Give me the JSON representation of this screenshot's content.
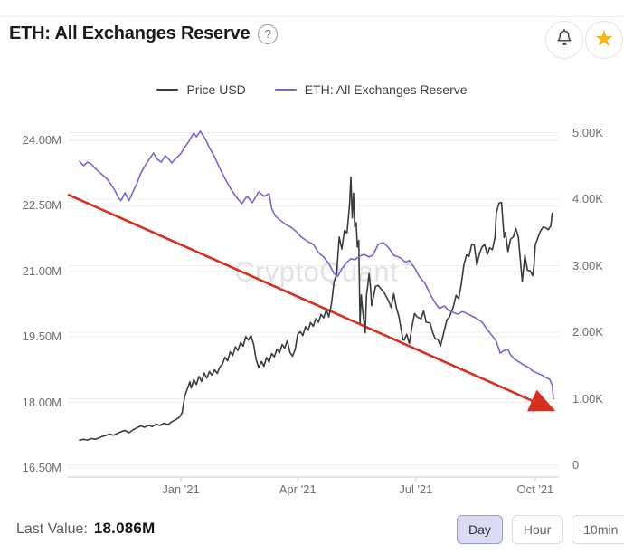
{
  "header": {
    "title": "ETH: All Exchanges Reserve",
    "help_glyph": "?"
  },
  "legend": {
    "items": [
      {
        "label": "Price USD",
        "color": "#3b3b3e"
      },
      {
        "label": "ETH: All Exchanges Reserve",
        "color": "#7468cf"
      }
    ]
  },
  "watermark": {
    "text": "CryptoQuant",
    "mark": "+"
  },
  "footer": {
    "last_value_label": "Last Value:",
    "last_value": "18.086M"
  },
  "intervals": [
    {
      "label": "Day",
      "active": true
    },
    {
      "label": "Hour",
      "active": false
    },
    {
      "label": "10min",
      "active": false
    }
  ],
  "colors": {
    "accent_red": "#d7301f",
    "star_gold": "#f5b51d",
    "grid": "#ededef",
    "axis": "#c9c9cd"
  },
  "chart_data": {
    "type": "line",
    "title": "ETH: All Exchanges Reserve",
    "x_unit": "days since 2020-10-15",
    "x_ticks": [
      {
        "label": "Jan '21",
        "t": 78
      },
      {
        "label": "Apr '21",
        "t": 168
      },
      {
        "label": "Jul '21",
        "t": 259
      },
      {
        "label": "Oct '21",
        "t": 351
      }
    ],
    "left_axis": {
      "name": "ETH: All Exchanges Reserve (ETH)",
      "range": [
        16.37,
        24.35
      ],
      "ticks": [
        {
          "label": "24.00M",
          "value": 24.0
        },
        {
          "label": "22.50M",
          "value": 22.5
        },
        {
          "label": "21.00M",
          "value": 21.0
        },
        {
          "label": "19.50M",
          "value": 19.5
        },
        {
          "label": "18.00M",
          "value": 18.0
        },
        {
          "label": "16.50M",
          "value": 16.5
        }
      ]
    },
    "right_axis": {
      "name": "Price USD",
      "range": [
        -90,
        5090
      ],
      "ticks": [
        {
          "label": "5.00K",
          "value": 5000
        },
        {
          "label": "4.00K",
          "value": 4000
        },
        {
          "label": "3.00K",
          "value": 3000
        },
        {
          "label": "2.00K",
          "value": 2000
        },
        {
          "label": "1.00K",
          "value": 1000
        },
        {
          "label": "0",
          "value": 0
        }
      ]
    },
    "series": [
      {
        "name": "Price USD",
        "axis": "right",
        "color": "#3b3b3e",
        "points": [
          [
            0,
            377
          ],
          [
            3,
            390
          ],
          [
            6,
            380
          ],
          [
            9,
            402
          ],
          [
            12,
            392
          ],
          [
            15,
            412
          ],
          [
            17,
            430
          ],
          [
            20,
            448
          ],
          [
            23,
            470
          ],
          [
            26,
            452
          ],
          [
            29,
            478
          ],
          [
            32,
            505
          ],
          [
            35,
            525
          ],
          [
            38,
            488
          ],
          [
            41,
            532
          ],
          [
            44,
            562
          ],
          [
            47,
            592
          ],
          [
            50,
            572
          ],
          [
            53,
            602
          ],
          [
            56,
            582
          ],
          [
            59,
            618
          ],
          [
            62,
            598
          ],
          [
            65,
            632
          ],
          [
            68,
            612
          ],
          [
            71,
            652
          ],
          [
            74,
            685
          ],
          [
            77,
            722
          ],
          [
            79,
            790
          ],
          [
            81,
            1040
          ],
          [
            83,
            1150
          ],
          [
            85,
            1255
          ],
          [
            86,
            1160
          ],
          [
            88,
            1290
          ],
          [
            90,
            1215
          ],
          [
            92,
            1335
          ],
          [
            94,
            1260
          ],
          [
            96,
            1385
          ],
          [
            98,
            1310
          ],
          [
            100,
            1410
          ],
          [
            102,
            1355
          ],
          [
            104,
            1435
          ],
          [
            106,
            1380
          ],
          [
            108,
            1475
          ],
          [
            110,
            1520
          ],
          [
            112,
            1625
          ],
          [
            114,
            1570
          ],
          [
            116,
            1705
          ],
          [
            118,
            1650
          ],
          [
            120,
            1780
          ],
          [
            122,
            1725
          ],
          [
            124,
            1845
          ],
          [
            126,
            1790
          ],
          [
            128,
            1935
          ],
          [
            130,
            1880
          ],
          [
            132,
            1950
          ],
          [
            134,
            1820
          ],
          [
            136,
            1590
          ],
          [
            138,
            1470
          ],
          [
            140,
            1560
          ],
          [
            142,
            1490
          ],
          [
            144,
            1620
          ],
          [
            146,
            1550
          ],
          [
            148,
            1680
          ],
          [
            150,
            1630
          ],
          [
            152,
            1745
          ],
          [
            154,
            1690
          ],
          [
            156,
            1815
          ],
          [
            158,
            1760
          ],
          [
            160,
            1875
          ],
          [
            162,
            1700
          ],
          [
            164,
            1640
          ],
          [
            166,
            1735
          ],
          [
            168,
            1970
          ],
          [
            170,
            2010
          ],
          [
            172,
            1950
          ],
          [
            174,
            2085
          ],
          [
            176,
            2030
          ],
          [
            178,
            2145
          ],
          [
            180,
            2090
          ],
          [
            182,
            2205
          ],
          [
            184,
            2150
          ],
          [
            186,
            2270
          ],
          [
            188,
            2215
          ],
          [
            190,
            2340
          ],
          [
            192,
            2230
          ],
          [
            194,
            2425
          ],
          [
            196,
            2755
          ],
          [
            198,
            2870
          ],
          [
            200,
            3430
          ],
          [
            202,
            3250
          ],
          [
            204,
            3530
          ],
          [
            206,
            3490
          ],
          [
            208,
            3925
          ],
          [
            209,
            4330
          ],
          [
            210,
            3720
          ],
          [
            211,
            4090
          ],
          [
            212,
            3580
          ],
          [
            213,
            3650
          ],
          [
            214,
            3280
          ],
          [
            215,
            3380
          ],
          [
            216,
            2140
          ],
          [
            217,
            2560
          ],
          [
            218,
            2330
          ],
          [
            220,
            1990
          ],
          [
            221,
            2560
          ],
          [
            222,
            2705
          ],
          [
            223,
            2880
          ],
          [
            224,
            2690
          ],
          [
            225,
            2400
          ],
          [
            228,
            2690
          ],
          [
            230,
            2705
          ],
          [
            233,
            2630
          ],
          [
            235,
            2580
          ],
          [
            238,
            2470
          ],
          [
            240,
            2370
          ],
          [
            242,
            2580
          ],
          [
            244,
            2370
          ],
          [
            246,
            2230
          ],
          [
            249,
            1890
          ],
          [
            250,
            1880
          ],
          [
            252,
            1970
          ],
          [
            254,
            1830
          ],
          [
            256,
            2080
          ],
          [
            258,
            2280
          ],
          [
            260,
            2230
          ],
          [
            263,
            2200
          ],
          [
            265,
            2320
          ],
          [
            267,
            2150
          ],
          [
            270,
            2140
          ],
          [
            272,
            1995
          ],
          [
            274,
            1900
          ],
          [
            276,
            1895
          ],
          [
            278,
            1790
          ],
          [
            281,
            2035
          ],
          [
            283,
            2190
          ],
          [
            285,
            2230
          ],
          [
            288,
            2390
          ],
          [
            290,
            2555
          ],
          [
            292,
            2505
          ],
          [
            294,
            2725
          ],
          [
            296,
            3010
          ],
          [
            298,
            3160
          ],
          [
            300,
            3140
          ],
          [
            302,
            3320
          ],
          [
            304,
            3310
          ],
          [
            306,
            3010
          ],
          [
            308,
            3180
          ],
          [
            310,
            3280
          ],
          [
            312,
            3320
          ],
          [
            314,
            3170
          ],
          [
            316,
            3270
          ],
          [
            318,
            3240
          ],
          [
            320,
            3430
          ],
          [
            321,
            3790
          ],
          [
            323,
            3940
          ],
          [
            325,
            3950
          ],
          [
            327,
            3420
          ],
          [
            328,
            3500
          ],
          [
            330,
            3210
          ],
          [
            332,
            3400
          ],
          [
            334,
            3430
          ],
          [
            336,
            3560
          ],
          [
            338,
            3430
          ],
          [
            340,
            2975
          ],
          [
            341,
            2760
          ],
          [
            343,
            3155
          ],
          [
            345,
            2930
          ],
          [
            347,
            2925
          ],
          [
            349,
            2850
          ],
          [
            350,
            3000
          ],
          [
            351,
            3310
          ],
          [
            353,
            3420
          ],
          [
            355,
            3520
          ],
          [
            357,
            3580
          ],
          [
            359,
            3570
          ],
          [
            361,
            3540
          ],
          [
            363,
            3600
          ],
          [
            364,
            3790
          ]
        ]
      },
      {
        "name": "ETH: All Exchanges Reserve",
        "axis": "left",
        "color": "#7468cf",
        "points": [
          [
            0,
            23.52
          ],
          [
            3,
            23.42
          ],
          [
            6,
            23.5
          ],
          [
            9,
            23.46
          ],
          [
            12,
            23.36
          ],
          [
            15,
            23.28
          ],
          [
            18,
            23.2
          ],
          [
            21,
            23.12
          ],
          [
            24,
            23.0
          ],
          [
            27,
            22.86
          ],
          [
            30,
            22.68
          ],
          [
            32,
            22.62
          ],
          [
            35,
            22.8
          ],
          [
            38,
            22.62
          ],
          [
            41,
            22.82
          ],
          [
            44,
            23.0
          ],
          [
            47,
            23.24
          ],
          [
            50,
            23.4
          ],
          [
            53,
            23.54
          ],
          [
            57,
            23.71
          ],
          [
            60,
            23.56
          ],
          [
            63,
            23.5
          ],
          [
            66,
            23.65
          ],
          [
            69,
            23.56
          ],
          [
            71,
            23.48
          ],
          [
            75,
            23.61
          ],
          [
            78,
            23.7
          ],
          [
            80,
            23.79
          ],
          [
            84,
            23.97
          ],
          [
            88,
            24.17
          ],
          [
            90,
            24.08
          ],
          [
            93,
            24.21
          ],
          [
            97,
            24.02
          ],
          [
            100,
            23.83
          ],
          [
            104,
            23.62
          ],
          [
            108,
            23.36
          ],
          [
            113,
            23.07
          ],
          [
            117,
            22.86
          ],
          [
            121,
            22.69
          ],
          [
            125,
            22.55
          ],
          [
            129,
            22.72
          ],
          [
            133,
            22.57
          ],
          [
            138,
            22.82
          ],
          [
            142,
            22.72
          ],
          [
            146,
            22.78
          ],
          [
            148,
            22.43
          ],
          [
            151,
            22.26
          ],
          [
            155,
            22.16
          ],
          [
            159,
            22.07
          ],
          [
            163,
            22.01
          ],
          [
            167,
            21.91
          ],
          [
            171,
            21.78
          ],
          [
            176,
            21.68
          ],
          [
            180,
            21.62
          ],
          [
            184,
            21.43
          ],
          [
            188,
            21.33
          ],
          [
            192,
            21.18
          ],
          [
            196,
            20.95
          ],
          [
            199,
            20.89
          ],
          [
            202,
            21.06
          ],
          [
            206,
            21.21
          ],
          [
            209,
            21.29
          ],
          [
            212,
            21.27
          ],
          [
            216,
            21.35
          ],
          [
            219,
            21.39
          ],
          [
            223,
            21.33
          ],
          [
            226,
            21.37
          ],
          [
            230,
            21.62
          ],
          [
            234,
            21.66
          ],
          [
            238,
            21.54
          ],
          [
            242,
            21.37
          ],
          [
            247,
            21.31
          ],
          [
            251,
            21.21
          ],
          [
            254,
            21.25
          ],
          [
            258,
            21.08
          ],
          [
            262,
            20.87
          ],
          [
            266,
            20.73
          ],
          [
            270,
            20.48
          ],
          [
            274,
            20.27
          ],
          [
            277,
            20.15
          ],
          [
            281,
            20.21
          ],
          [
            284,
            20.11
          ],
          [
            288,
            20.06
          ],
          [
            291,
            20.02
          ],
          [
            295,
            20.08
          ],
          [
            298,
            20.04
          ],
          [
            302,
            19.98
          ],
          [
            306,
            19.92
          ],
          [
            310,
            19.84
          ],
          [
            314,
            19.67
          ],
          [
            318,
            19.52
          ],
          [
            321,
            19.4
          ],
          [
            324,
            19.13
          ],
          [
            327,
            19.19
          ],
          [
            330,
            19.21
          ],
          [
            332,
            19.09
          ],
          [
            335,
            18.99
          ],
          [
            339,
            18.92
          ],
          [
            342,
            18.86
          ],
          [
            346,
            18.8
          ],
          [
            349,
            18.72
          ],
          [
            352,
            18.68
          ],
          [
            356,
            18.63
          ],
          [
            359,
            18.57
          ],
          [
            362,
            18.53
          ],
          [
            364,
            18.4
          ],
          [
            365,
            18.086
          ]
        ]
      }
    ],
    "annotations": [
      {
        "type": "arrow",
        "axis": "left",
        "color": "#d7301f",
        "from": {
          "t": -9,
          "value": 22.76
        },
        "to": {
          "t": 360,
          "value": 17.89
        }
      }
    ],
    "last_value": "18.086M",
    "grid": true,
    "legend_position": "top-center"
  }
}
